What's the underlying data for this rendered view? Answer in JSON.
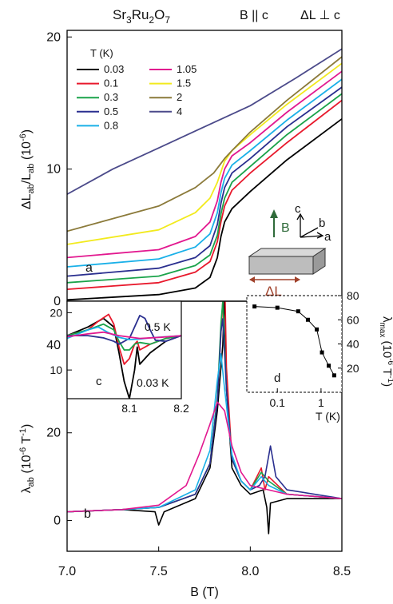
{
  "figure": {
    "title": "Sr3Ru2O7",
    "field_config": "B || c",
    "strain_config": "ΔL ⊥ c"
  },
  "colors": {
    "0.03": "#000000",
    "0.1": "#e8192c",
    "0.3": "#1aa34a",
    "0.5": "#2a2f8f",
    "0.8": "#1ab0e8",
    "1.05": "#e2188f",
    "1.5": "#f2ea1e",
    "2": "#8b7a3a",
    "4": "#4b4a8a",
    "arrow_B": "#2f6b3a",
    "arrow_L": "#a0412a"
  },
  "chart_data": [
    {
      "id": "panel-a",
      "type": "line",
      "panel_label": "a",
      "ylabel": "ΔL_ab/L_ab (10^-6)",
      "xlim": [
        7.0,
        8.5
      ],
      "ylim": [
        0,
        20.5
      ],
      "yticks": [
        0,
        10,
        20
      ],
      "legend_title": "T (K)",
      "legend_placement": "top-left",
      "inset_labels": {
        "field": "B",
        "strain": "ΔL",
        "axis_c": "c",
        "axis_b": "b",
        "axis_a": "a"
      },
      "series": [
        {
          "name": "0.03",
          "x": [
            7.0,
            7.5,
            7.7,
            7.78,
            7.82,
            7.84,
            7.86,
            7.9,
            8.0,
            8.2,
            8.5
          ],
          "y": [
            0.1,
            0.5,
            1.0,
            1.8,
            3.3,
            4.9,
            6.0,
            7.0,
            8.3,
            10.7,
            13.8
          ]
        },
        {
          "name": "0.1",
          "x": [
            7.0,
            7.5,
            7.7,
            7.78,
            7.82,
            7.84,
            7.86,
            7.9,
            8.0,
            8.2,
            8.5
          ],
          "y": [
            0.9,
            1.4,
            2.2,
            3.0,
            4.5,
            6.0,
            7.2,
            8.4,
            9.7,
            12.0,
            15.2
          ]
        },
        {
          "name": "0.3",
          "x": [
            7.0,
            7.5,
            7.7,
            7.78,
            7.82,
            7.84,
            7.86,
            7.9,
            8.0,
            8.2,
            8.5
          ],
          "y": [
            1.4,
            1.9,
            2.7,
            3.5,
            5.0,
            6.6,
            7.8,
            9.0,
            10.2,
            12.6,
            15.7
          ]
        },
        {
          "name": "0.5",
          "x": [
            7.0,
            7.5,
            7.7,
            7.78,
            7.82,
            7.84,
            7.86,
            7.9,
            8.0,
            8.2,
            8.5
          ],
          "y": [
            1.9,
            2.5,
            3.3,
            4.2,
            5.8,
            7.4,
            8.6,
            9.7,
            10.8,
            13.2,
            16.2
          ]
        },
        {
          "name": "0.8",
          "x": [
            7.0,
            7.5,
            7.7,
            7.78,
            7.82,
            7.84,
            7.86,
            7.9,
            8.0,
            8.2,
            8.5
          ],
          "y": [
            2.6,
            3.2,
            4.1,
            5.1,
            6.7,
            8.2,
            9.3,
            10.3,
            11.4,
            13.7,
            16.8
          ]
        },
        {
          "name": "1.05",
          "x": [
            7.0,
            7.5,
            7.7,
            7.78,
            7.82,
            7.84,
            7.86,
            7.9,
            8.0,
            8.2,
            8.5
          ],
          "y": [
            3.3,
            3.9,
            4.9,
            6.0,
            7.6,
            9.0,
            10.0,
            11.0,
            12.0,
            14.3,
            17.4
          ]
        },
        {
          "name": "1.5",
          "x": [
            7.0,
            7.5,
            7.7,
            7.78,
            7.82,
            7.86,
            7.9,
            8.0,
            8.2,
            8.5
          ],
          "y": [
            4.3,
            5.4,
            6.7,
            7.8,
            9.0,
            10.6,
            11.4,
            12.6,
            14.9,
            18.0
          ]
        },
        {
          "name": "2",
          "x": [
            7.0,
            7.5,
            7.7,
            7.8,
            7.86,
            7.9,
            8.0,
            8.2,
            8.5
          ],
          "y": [
            5.3,
            7.2,
            8.6,
            9.7,
            10.8,
            11.4,
            12.8,
            15.2,
            18.5
          ]
        },
        {
          "name": "4",
          "x": [
            7.0,
            7.25,
            7.5,
            7.75,
            8.0,
            8.25,
            8.5
          ],
          "y": [
            8.1,
            10.0,
            11.6,
            13.2,
            14.8,
            16.9,
            19.1
          ]
        }
      ]
    },
    {
      "id": "panel-b",
      "type": "line",
      "panel_label": "b",
      "xlabel": "B (T)",
      "ylabel": "λ_ab (10^-6 T^-1)",
      "xlim": [
        7.0,
        8.5
      ],
      "ylim": [
        -7,
        50
      ],
      "xticks": [
        7.0,
        7.5,
        8.0,
        8.5
      ],
      "yticks": [
        0,
        20,
        40
      ],
      "series": [
        {
          "name": "0.03",
          "x": [
            7.0,
            7.3,
            7.48,
            7.5,
            7.53,
            7.7,
            7.78,
            7.82,
            7.85,
            7.86,
            7.87,
            7.9,
            7.95,
            8.0,
            8.07,
            8.09,
            8.1,
            8.11,
            8.2,
            8.5
          ],
          "y": [
            2,
            2.5,
            2,
            -1,
            2,
            5,
            12,
            25,
            40,
            53,
            30,
            12,
            8,
            6,
            7,
            3,
            -3,
            4,
            5,
            5
          ]
        },
        {
          "name": "0.1",
          "x": [
            7.0,
            7.3,
            7.5,
            7.7,
            7.78,
            7.82,
            7.85,
            7.86,
            7.87,
            7.9,
            7.95,
            8.0,
            8.06,
            8.08,
            8.1,
            8.2,
            8.5
          ],
          "y": [
            2,
            2.5,
            3,
            6,
            13,
            28,
            50,
            57,
            35,
            14,
            9,
            7,
            12,
            7,
            10,
            6,
            5
          ]
        },
        {
          "name": "0.3",
          "x": [
            7.0,
            7.3,
            7.5,
            7.7,
            7.78,
            7.82,
            7.84,
            7.85,
            7.87,
            7.9,
            7.95,
            8.0,
            8.06,
            8.1,
            8.2,
            8.5
          ],
          "y": [
            2,
            2.5,
            3,
            6,
            13,
            28,
            45,
            50,
            30,
            14,
            9,
            7,
            11,
            9,
            6,
            5
          ]
        },
        {
          "name": "0.5",
          "x": [
            7.0,
            7.3,
            7.5,
            7.7,
            7.78,
            7.82,
            7.84,
            7.85,
            7.87,
            7.9,
            7.95,
            8.0,
            8.05,
            8.08,
            8.11,
            8.14,
            8.2,
            8.5
          ],
          "y": [
            2,
            2.5,
            3,
            6,
            13,
            27,
            43,
            46,
            30,
            14,
            9,
            7,
            8,
            10,
            17,
            10,
            7,
            5
          ]
        },
        {
          "name": "0.8",
          "x": [
            7.0,
            7.3,
            7.5,
            7.7,
            7.78,
            7.82,
            7.84,
            7.86,
            7.9,
            7.95,
            8.0,
            8.06,
            8.1,
            8.2,
            8.5
          ],
          "y": [
            2,
            2.5,
            3,
            7,
            16,
            32,
            38,
            30,
            15,
            9,
            7,
            10,
            8,
            6,
            5
          ]
        },
        {
          "name": "1.05",
          "x": [
            7.0,
            7.3,
            7.5,
            7.65,
            7.72,
            7.78,
            7.82,
            7.86,
            7.9,
            7.95,
            8.0,
            8.1,
            8.2,
            8.5
          ],
          "y": [
            2,
            2.5,
            3.5,
            8,
            15,
            22,
            27,
            25,
            17,
            11,
            8,
            7,
            6,
            5
          ]
        }
      ]
    },
    {
      "id": "panel-c",
      "type": "line",
      "panel_label": "c",
      "xlim": [
        7.98,
        8.2
      ],
      "ylim": [
        5,
        22
      ],
      "xticks": [
        8.1,
        8.2
      ],
      "yticks": [
        10,
        20
      ],
      "annotations": [
        "0.5 K",
        "0.03 K"
      ],
      "series": [
        {
          "name": "0.03",
          "x": [
            7.98,
            8.02,
            8.05,
            8.07,
            8.08,
            8.09,
            8.1,
            8.11,
            8.115,
            8.12,
            8.14,
            8.17,
            8.2
          ],
          "y": [
            16,
            17.5,
            19,
            17.5,
            13,
            8,
            5,
            10,
            14,
            11,
            13,
            15,
            16
          ]
        },
        {
          "name": "0.1",
          "x": [
            7.98,
            8.02,
            8.04,
            8.06,
            8.07,
            8.08,
            8.09,
            8.1,
            8.11,
            8.115,
            8.12,
            8.14,
            8.17,
            8.2
          ],
          "y": [
            16,
            17,
            18.5,
            19.7,
            18,
            14,
            11,
            12,
            14.5,
            15,
            13.5,
            14.5,
            15.5,
            16
          ]
        },
        {
          "name": "0.3",
          "x": [
            7.98,
            8.02,
            8.05,
            8.07,
            8.08,
            8.09,
            8.1,
            8.11,
            8.12,
            8.14,
            8.17,
            8.2
          ],
          "y": [
            16,
            17,
            18,
            17,
            15,
            13.5,
            13.5,
            14.5,
            14.8,
            14.5,
            15.5,
            16
          ]
        },
        {
          "name": "0.5",
          "x": [
            7.98,
            8.02,
            8.05,
            8.07,
            8.08,
            8.1,
            8.11,
            8.12,
            8.13,
            8.14,
            8.15,
            8.17,
            8.2
          ],
          "y": [
            16,
            16,
            15.6,
            15,
            14.5,
            15.5,
            17.5,
            19.5,
            19,
            17,
            15.2,
            15,
            16
          ]
        },
        {
          "name": "0.8",
          "x": [
            7.98,
            8.02,
            8.04,
            8.06,
            8.08,
            8.1,
            8.12,
            8.14,
            8.17,
            8.2
          ],
          "y": [
            15.5,
            17,
            17.5,
            16.5,
            15.7,
            15.3,
            15.4,
            15.6,
            15.8,
            16
          ]
        },
        {
          "name": "1.05",
          "x": [
            7.98,
            8.02,
            8.05,
            8.08,
            8.12,
            8.16,
            8.2
          ],
          "y": [
            15.8,
            16.3,
            16.6,
            16,
            15.5,
            15.7,
            16
          ]
        }
      ]
    },
    {
      "id": "panel-d",
      "type": "scatter",
      "panel_label": "d",
      "xlabel": "T (K)",
      "ylabel": "λ_max (10^-6 T^-1)",
      "xscale": "log",
      "xlim": [
        0.02,
        3
      ],
      "ylim": [
        0,
        80
      ],
      "xticks": [
        0.1,
        1
      ],
      "yticks": [
        20,
        40,
        60,
        80
      ],
      "points": {
        "x": [
          0.03,
          0.1,
          0.3,
          0.5,
          0.8,
          1.05,
          1.5,
          2
        ],
        "y": [
          71,
          70,
          67,
          60,
          52,
          33,
          22,
          14
        ]
      }
    }
  ]
}
